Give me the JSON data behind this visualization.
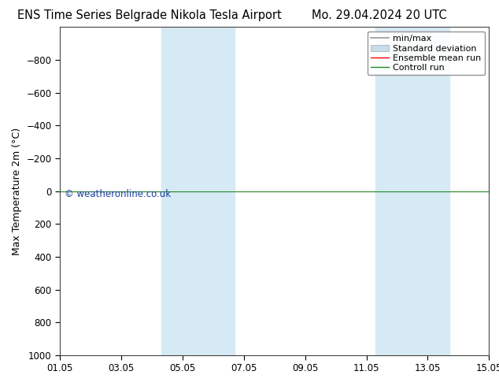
{
  "title_left": "ENS Time Series Belgrade Nikola Tesla Airport",
  "title_right": "Mo. 29.04.2024 20 UTC",
  "ylabel": "Max Temperature 2m (°C)",
  "ylim_bottom": 1000,
  "ylim_top": -1000,
  "yticks": [
    -800,
    -600,
    -400,
    -200,
    0,
    200,
    400,
    600,
    800,
    1000
  ],
  "xlim": [
    0,
    14
  ],
  "xtick_labels": [
    "01.05",
    "03.05",
    "05.05",
    "07.05",
    "09.05",
    "11.05",
    "13.05",
    "15.05"
  ],
  "xtick_positions": [
    0,
    2,
    4,
    6,
    8,
    10,
    12,
    14
  ],
  "shade_bands": [
    {
      "x_start": 3.3,
      "x_end": 5.7
    },
    {
      "x_start": 10.3,
      "x_end": 12.7
    }
  ],
  "shade_color": "#d6eaf5",
  "control_run_y": 0,
  "control_run_color": "#228b22",
  "ensemble_mean_color": "#ff0000",
  "minmax_color": "#999999",
  "std_dev_color": "#cccccc",
  "watermark": "© weatheronline.co.uk",
  "watermark_color": "#1a3f9e",
  "background_color": "#ffffff",
  "plot_bg_color": "#ffffff",
  "title_fontsize": 10.5,
  "axis_fontsize": 8.5,
  "legend_fontsize": 8,
  "ylabel_fontsize": 9
}
